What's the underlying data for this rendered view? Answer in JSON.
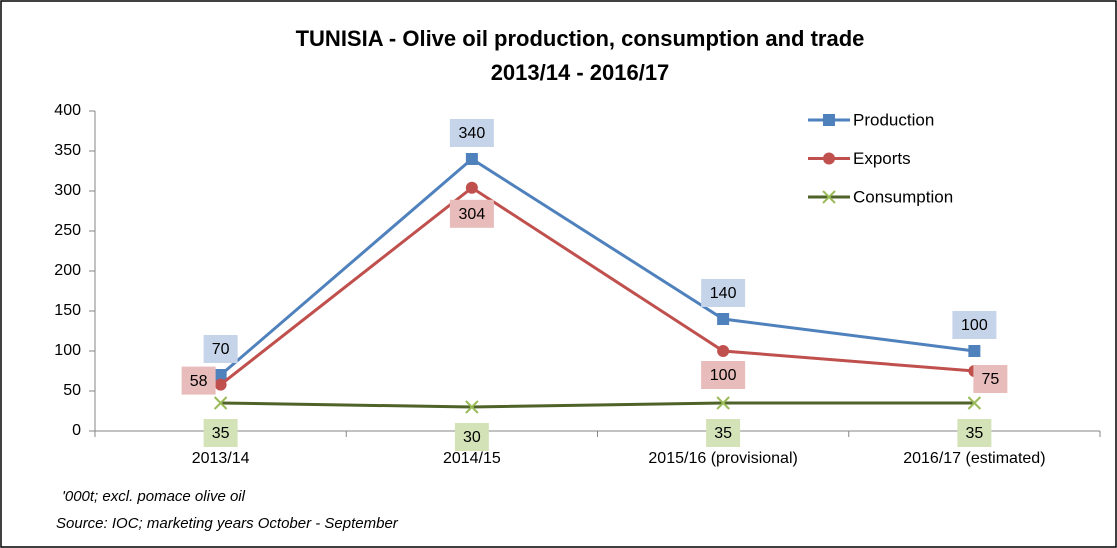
{
  "chart_data": {
    "type": "line",
    "title": "TUNISIA - Olive oil production, consumption and trade",
    "subtitle": "2013/14 - 2016/17",
    "categories": [
      "2013/14",
      "2014/15",
      "2015/16 (provisional)",
      "2016/17 (estimated)"
    ],
    "series": [
      {
        "name": "Production",
        "color": "#4f81bd",
        "marker": "square",
        "label_color": "#c6d4ea",
        "values": [
          70,
          340,
          140,
          100
        ]
      },
      {
        "name": "Exports",
        "color": "#c0504d",
        "marker": "circle",
        "label_color": "#e8bcbb",
        "values": [
          58,
          304,
          100,
          75
        ]
      },
      {
        "name": "Consumption",
        "color": "#4f6228",
        "marker": "x",
        "marker_color": "#9bbb59",
        "label_color": "#d4e2b8",
        "values": [
          35,
          30,
          35,
          35
        ]
      }
    ],
    "ylim": [
      0,
      400
    ],
    "yticks": [
      0,
      50,
      100,
      150,
      200,
      250,
      300,
      350,
      400
    ],
    "grid": false,
    "legend": "top-right",
    "notes": [
      "'000t; excl. pomace olive oil",
      "Source: IOC; marketing years October - September"
    ]
  }
}
